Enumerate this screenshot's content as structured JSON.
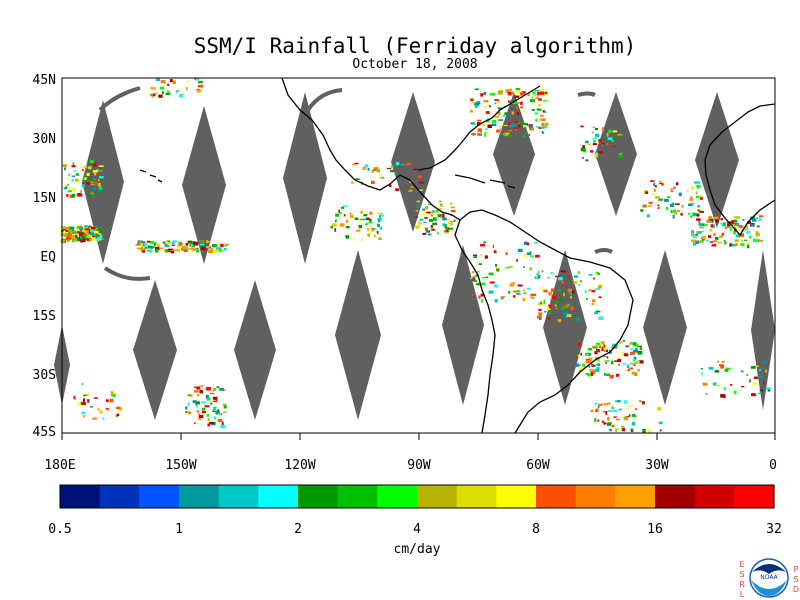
{
  "title": "SSM/I Rainfall (Ferriday algorithm)",
  "subtitle": "October 18, 2008",
  "map": {
    "lat_range": [
      -45,
      45
    ],
    "lon_range": [
      180,
      360
    ],
    "lat_labels": [
      "45N",
      "30N",
      "15N",
      "EQ",
      "15S",
      "30S",
      "45S"
    ],
    "lon_labels": [
      "180E",
      "150W",
      "120W",
      "90W",
      "60W",
      "30W",
      "0"
    ],
    "swath_gap_color": "#606060",
    "land_outline_color": "#000000"
  },
  "colorbar": {
    "unit_label": "cm/day",
    "tick_labels": [
      "0.5",
      "1",
      "2",
      "4",
      "8",
      "16",
      "32"
    ],
    "colors": [
      "#00127a",
      "#0033bb",
      "#0055ff",
      "#00999c",
      "#00c8c8",
      "#00ffff",
      "#009900",
      "#00c000",
      "#00ff00",
      "#b4b400",
      "#dcdc00",
      "#ffff00",
      "#ff5000",
      "#ff7d00",
      "#ffa000",
      "#a00000",
      "#d20000",
      "#ff0000"
    ]
  },
  "logo": {
    "left_text": "ESRL",
    "right_text": "PSD",
    "center_text": "NOAA"
  }
}
